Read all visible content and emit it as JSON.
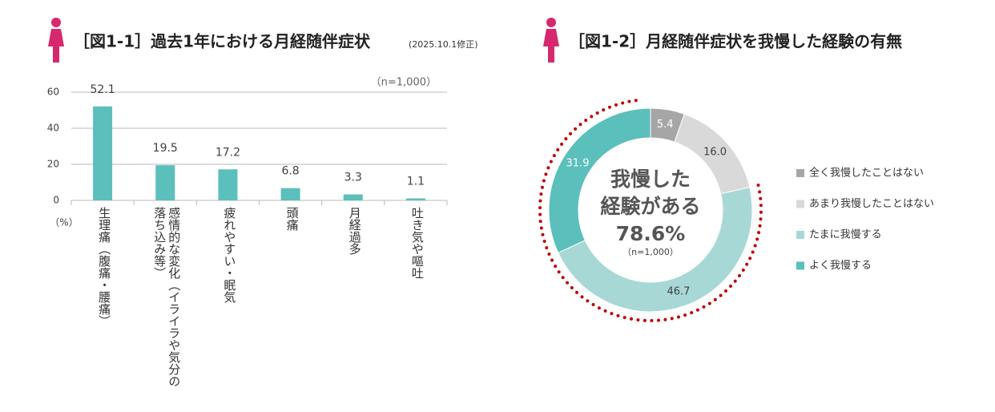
{
  "chart_data": [
    {
      "type": "bar",
      "title": "［図1-1］過去1年における月経随伴症状",
      "subtitle": "(2025.10.1修正)",
      "note": "（n=1,000）",
      "y_unit": "（%）",
      "categories": [
        "生理痛（腹痛・腰痛）",
        "感情的な変化（イライラや気分の落ち込み等）",
        "疲れやすい・眠気",
        "頭痛",
        "月経過多",
        "吐き気や嘔吐"
      ],
      "values": [
        52.1,
        19.5,
        17.2,
        6.8,
        3.3,
        1.1
      ],
      "color": "#5bbfbc",
      "ylim": [
        0,
        60
      ],
      "yticks": [
        0,
        20,
        40,
        60
      ],
      "grid": true
    },
    {
      "type": "donut",
      "title": "［図1-2］月経随伴症状を我慢した経験の有無",
      "categories": [
        "全く我慢したことはない",
        "あまり我慢したことはない",
        "たまに我慢する",
        "よく我慢する"
      ],
      "values": [
        5.4,
        16.0,
        46.7,
        31.9
      ],
      "value_labels": [
        "5.4",
        "16.0",
        "46.7",
        "31.9"
      ],
      "colors": [
        "#a6a6a6",
        "#d9d9d9",
        "#a8d8d6",
        "#5bbfbc"
      ],
      "center_text": [
        "我慢した",
        "経験がある"
      ],
      "center_value": {
        "value": 78.6,
        "label": "78.6%"
      },
      "note": "（n=1,000）",
      "highlight_color": "#c00000"
    }
  ]
}
